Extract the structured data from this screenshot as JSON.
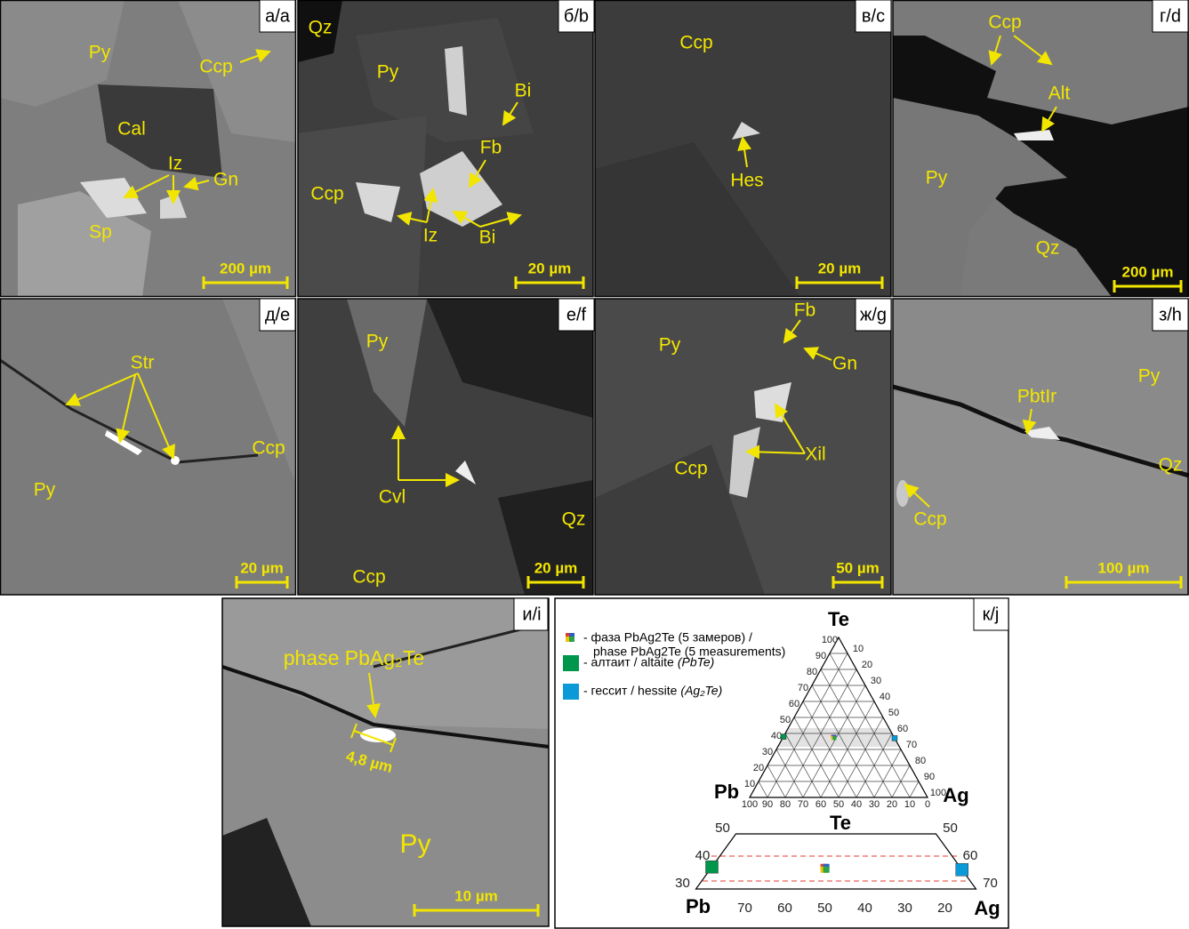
{
  "panels": [
    {
      "label": "а/a",
      "scale": "200 µm",
      "annotations": [
        "Py",
        "Ccp",
        "Cal",
        "Iz",
        "Gn",
        "Sp"
      ]
    },
    {
      "label": "б/b",
      "scale": "20 µm",
      "annotations": [
        "Qz",
        "Py",
        "Bi",
        "Fb",
        "Ccp",
        "Iz",
        "Bi"
      ]
    },
    {
      "label": "в/c",
      "scale": "20 µm",
      "annotations": [
        "Ccp",
        "Hes"
      ]
    },
    {
      "label": "г/d",
      "scale": "200 µm",
      "annotations": [
        "Ccp",
        "Alt",
        "Py",
        "Qz"
      ]
    },
    {
      "label": "д/e",
      "scale": "20 µm",
      "annotations": [
        "Str",
        "Ccp",
        "Py"
      ]
    },
    {
      "label": "е/f",
      "scale": "20 µm",
      "annotations": [
        "Py",
        "Cvl",
        "Qz",
        "Ccp"
      ]
    },
    {
      "label": "ж/g",
      "scale": "50 µm",
      "annotations": [
        "Fb",
        "Py",
        "Gn",
        "Ccp",
        "Xil"
      ]
    },
    {
      "label": "з/h",
      "scale": "100 µm",
      "annotations": [
        "Py",
        "PbtIr",
        "Qz",
        "Ccp"
      ]
    },
    {
      "label": "и/i",
      "scale": "10 µm",
      "annotations": [
        "phase PbAg₂Te",
        "4,8 µm",
        "Py"
      ]
    }
  ],
  "ternary": {
    "label": "к/j",
    "vertices": {
      "top": "Te",
      "left": "Pb",
      "right": "Ag"
    },
    "legend": [
      {
        "text": "- фаза PbAg2Te (5 замеров) /",
        "text2": "phase PbAg2Te (5 measurements)",
        "colors": [
          "#e53a2f",
          "#2a5fc4",
          "#f2c200",
          "#2ca24a"
        ],
        "te": 37.5,
        "ag": 28.5,
        "pb": 34
      },
      {
        "text": "- алтаит / altaite",
        "formula": "(PbTe)",
        "color": "#00964b",
        "te": 38,
        "ag": 0,
        "pb": 62
      },
      {
        "text": "- гессит / hessite",
        "formula": "(Ag₂Te)",
        "color": "#0b9ad8",
        "te": 37,
        "ag": 63,
        "pb": 0
      }
    ],
    "te_ticks": [
      10,
      20,
      30,
      40,
      50,
      60,
      70,
      80,
      90,
      100
    ],
    "ag_ticks": [
      10,
      20,
      30,
      40,
      50,
      60,
      70,
      80,
      90,
      100
    ],
    "pb_ticks": [
      0,
      10,
      20,
      30,
      40,
      50,
      60,
      70,
      80,
      90,
      100
    ],
    "zoom": {
      "te_ticks": [
        30,
        40,
        50
      ],
      "ag_ticks": [
        50,
        60,
        70
      ],
      "pb_ticks": [
        20,
        30,
        40,
        50,
        60,
        70
      ]
    }
  }
}
